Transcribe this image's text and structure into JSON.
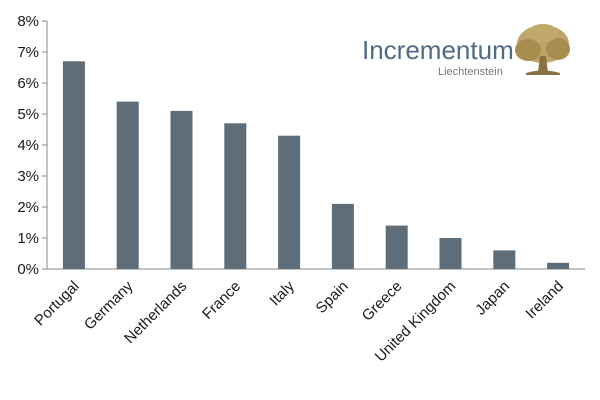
{
  "logo": {
    "name": "Incrementum",
    "subtitle": "Liechtenstein",
    "text_color": "#4f6a86",
    "tree_color": "#b59a5a"
  },
  "chart_data": {
    "type": "bar",
    "title": "",
    "xlabel": "",
    "ylabel": "",
    "categories": [
      "Portugal",
      "Germany",
      "Netherlands",
      "France",
      "Italy",
      "Spain",
      "Greece",
      "United Kingdom",
      "Japan",
      "Ireland"
    ],
    "values": [
      6.7,
      5.4,
      5.1,
      4.7,
      4.3,
      2.1,
      1.4,
      1.0,
      0.6,
      0.2
    ],
    "ylim": [
      0,
      8
    ],
    "yticks": [
      0,
      1,
      2,
      3,
      4,
      5,
      6,
      7,
      8
    ],
    "ytick_labels": [
      "0%",
      "1%",
      "2%",
      "3%",
      "4%",
      "5%",
      "6%",
      "7%",
      "8%"
    ],
    "bar_color": "#5d6d7a",
    "grid": false,
    "legend": "none"
  }
}
